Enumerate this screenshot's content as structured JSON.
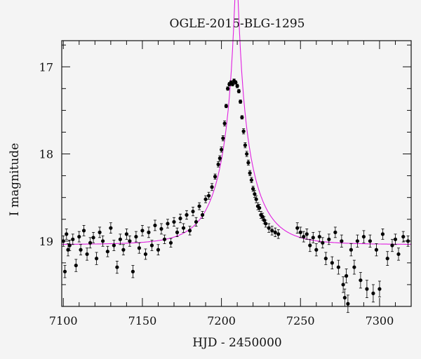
{
  "chart_data": {
    "type": "scatter",
    "title": "OGLE-2015-BLG-1295",
    "xlabel": "HJD - 2450000",
    "ylabel": "I magnitude",
    "xlim": [
      7099,
      7320
    ],
    "ylim": [
      19.75,
      16.7
    ],
    "y_inverted": true,
    "x_ticks": [
      7100,
      7150,
      7200,
      7250,
      7300
    ],
    "y_ticks": [
      17,
      18,
      19
    ],
    "grid": false,
    "colors": {
      "points": "#000000",
      "model": "#e020e0"
    },
    "model": {
      "description_free": true,
      "t0": 7209.5,
      "u0": 0.06,
      "tE": 22,
      "baseline": 19.04
    },
    "series": [
      {
        "x": [
          7100,
          7101,
          7102,
          7103,
          7104,
          7106,
          7108,
          7110,
          7111,
          7113,
          7115,
          7117,
          7119,
          7121,
          7123,
          7125,
          7128,
          7130,
          7132,
          7134,
          7136,
          7138,
          7140,
          7142,
          7144,
          7146,
          7148,
          7150,
          7152,
          7154,
          7156,
          7158,
          7160,
          7162,
          7164,
          7166,
          7168,
          7170,
          7172,
          7174,
          7176,
          7178,
          7180,
          7182,
          7184,
          7186,
          7188,
          7190,
          7192,
          7194,
          7196,
          7198,
          7199,
          7200,
          7201,
          7202,
          7203,
          7204,
          7205,
          7206,
          7207,
          7208,
          7209,
          7210,
          7211,
          7212,
          7213,
          7214,
          7215,
          7216,
          7217,
          7218,
          7219,
          7220,
          7221,
          7222,
          7223,
          7224,
          7225,
          7226,
          7227,
          7228,
          7230,
          7232,
          7234,
          7236,
          7248,
          7250,
          7252,
          7254,
          7256,
          7258,
          7260,
          7262,
          7264,
          7266,
          7268,
          7270,
          7272,
          7274,
          7276,
          7277,
          7278,
          7279,
          7280,
          7282,
          7284,
          7286,
          7288,
          7290,
          7292,
          7294,
          7296,
          7298,
          7300,
          7302,
          7305,
          7308,
          7310,
          7312,
          7315,
          7318
        ],
        "y": [
          19.0,
          19.35,
          18.92,
          19.1,
          19.05,
          18.98,
          19.28,
          18.95,
          19.1,
          18.88,
          19.15,
          19.02,
          18.96,
          19.2,
          18.9,
          19.0,
          19.12,
          18.85,
          19.05,
          19.3,
          18.98,
          19.1,
          18.92,
          19.0,
          19.35,
          18.95,
          19.08,
          18.88,
          19.15,
          18.9,
          19.05,
          18.82,
          19.1,
          18.86,
          18.98,
          18.8,
          19.02,
          18.78,
          18.9,
          18.74,
          18.85,
          18.7,
          18.88,
          18.66,
          18.78,
          18.6,
          18.7,
          18.52,
          18.48,
          18.38,
          18.26,
          18.12,
          18.05,
          17.95,
          17.82,
          17.65,
          17.45,
          17.25,
          17.2,
          17.18,
          17.2,
          17.16,
          17.18,
          17.22,
          17.28,
          17.4,
          17.58,
          17.74,
          17.9,
          18.0,
          18.1,
          18.22,
          18.3,
          18.4,
          18.46,
          18.52,
          18.6,
          18.62,
          18.7,
          18.72,
          18.76,
          18.8,
          18.85,
          18.88,
          18.9,
          18.92,
          18.85,
          18.9,
          18.95,
          18.92,
          19.05,
          18.96,
          19.1,
          18.95,
          19.02,
          19.2,
          18.98,
          19.25,
          18.9,
          19.3,
          19.0,
          19.5,
          19.65,
          19.4,
          19.72,
          19.1,
          19.3,
          19.0,
          19.45,
          18.95,
          19.55,
          19.0,
          19.6,
          19.1,
          19.55,
          18.92,
          19.2,
          19.05,
          18.98,
          19.15,
          18.95,
          19.0
        ],
        "err": [
          0.06,
          0.07,
          0.06,
          0.07,
          0.06,
          0.06,
          0.07,
          0.06,
          0.06,
          0.06,
          0.07,
          0.06,
          0.06,
          0.07,
          0.06,
          0.06,
          0.06,
          0.06,
          0.06,
          0.07,
          0.06,
          0.06,
          0.06,
          0.06,
          0.07,
          0.06,
          0.06,
          0.06,
          0.06,
          0.06,
          0.06,
          0.06,
          0.06,
          0.06,
          0.05,
          0.05,
          0.05,
          0.05,
          0.05,
          0.05,
          0.05,
          0.05,
          0.05,
          0.05,
          0.05,
          0.04,
          0.04,
          0.04,
          0.04,
          0.04,
          0.03,
          0.03,
          0.03,
          0.03,
          0.03,
          0.03,
          0.02,
          0.02,
          0.02,
          0.02,
          0.02,
          0.02,
          0.02,
          0.02,
          0.02,
          0.02,
          0.02,
          0.03,
          0.03,
          0.03,
          0.03,
          0.03,
          0.03,
          0.03,
          0.04,
          0.04,
          0.04,
          0.04,
          0.04,
          0.04,
          0.04,
          0.04,
          0.05,
          0.05,
          0.05,
          0.05,
          0.06,
          0.06,
          0.06,
          0.06,
          0.07,
          0.06,
          0.07,
          0.06,
          0.06,
          0.07,
          0.06,
          0.07,
          0.06,
          0.08,
          0.07,
          0.09,
          0.1,
          0.08,
          0.1,
          0.07,
          0.08,
          0.07,
          0.09,
          0.07,
          0.1,
          0.07,
          0.1,
          0.07,
          0.09,
          0.06,
          0.08,
          0.07,
          0.06,
          0.07,
          0.06,
          0.06
        ]
      }
    ]
  }
}
